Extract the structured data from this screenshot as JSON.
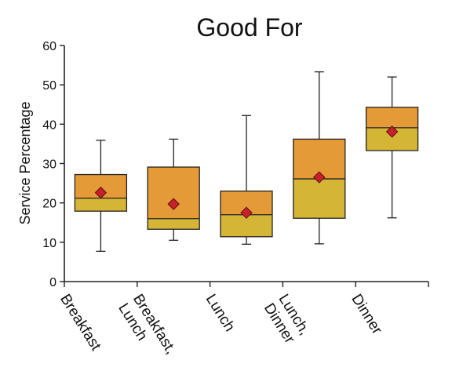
{
  "chart_data": {
    "type": "boxplot",
    "title": "Good For",
    "ylabel": "Service Percentage",
    "xlabel": "",
    "ylim": [
      0,
      60
    ],
    "yticks": [
      0,
      10,
      20,
      30,
      40,
      50,
      60
    ],
    "grid": false,
    "colors": {
      "upper_box": "#E59A38",
      "lower_box": "#D5B536",
      "mean_marker": "#C8202B",
      "line": "#222222"
    },
    "categories": [
      {
        "label_lines": [
          "Breakfast"
        ],
        "min": 7.7,
        "q1": 17.9,
        "median": 21.2,
        "q3": 27.2,
        "max": 35.9,
        "mean": 22.6
      },
      {
        "label_lines": [
          "Breakfast,",
          "Lunch"
        ],
        "min": 10.5,
        "q1": 13.3,
        "median": 16.0,
        "q3": 29.1,
        "max": 36.2,
        "mean": 19.7
      },
      {
        "label_lines": [
          "Lunch"
        ],
        "min": 9.5,
        "q1": 11.4,
        "median": 17.0,
        "q3": 23.0,
        "max": 42.2,
        "mean": 17.5
      },
      {
        "label_lines": [
          "Lunch,",
          "Dinner"
        ],
        "min": 9.6,
        "q1": 16.1,
        "median": 26.1,
        "q3": 36.2,
        "max": 53.3,
        "mean": 26.5
      },
      {
        "label_lines": [
          "Dinner"
        ],
        "min": 16.2,
        "q1": 33.3,
        "median": 39.1,
        "q3": 44.3,
        "max": 52.0,
        "mean": 38.1
      }
    ]
  }
}
